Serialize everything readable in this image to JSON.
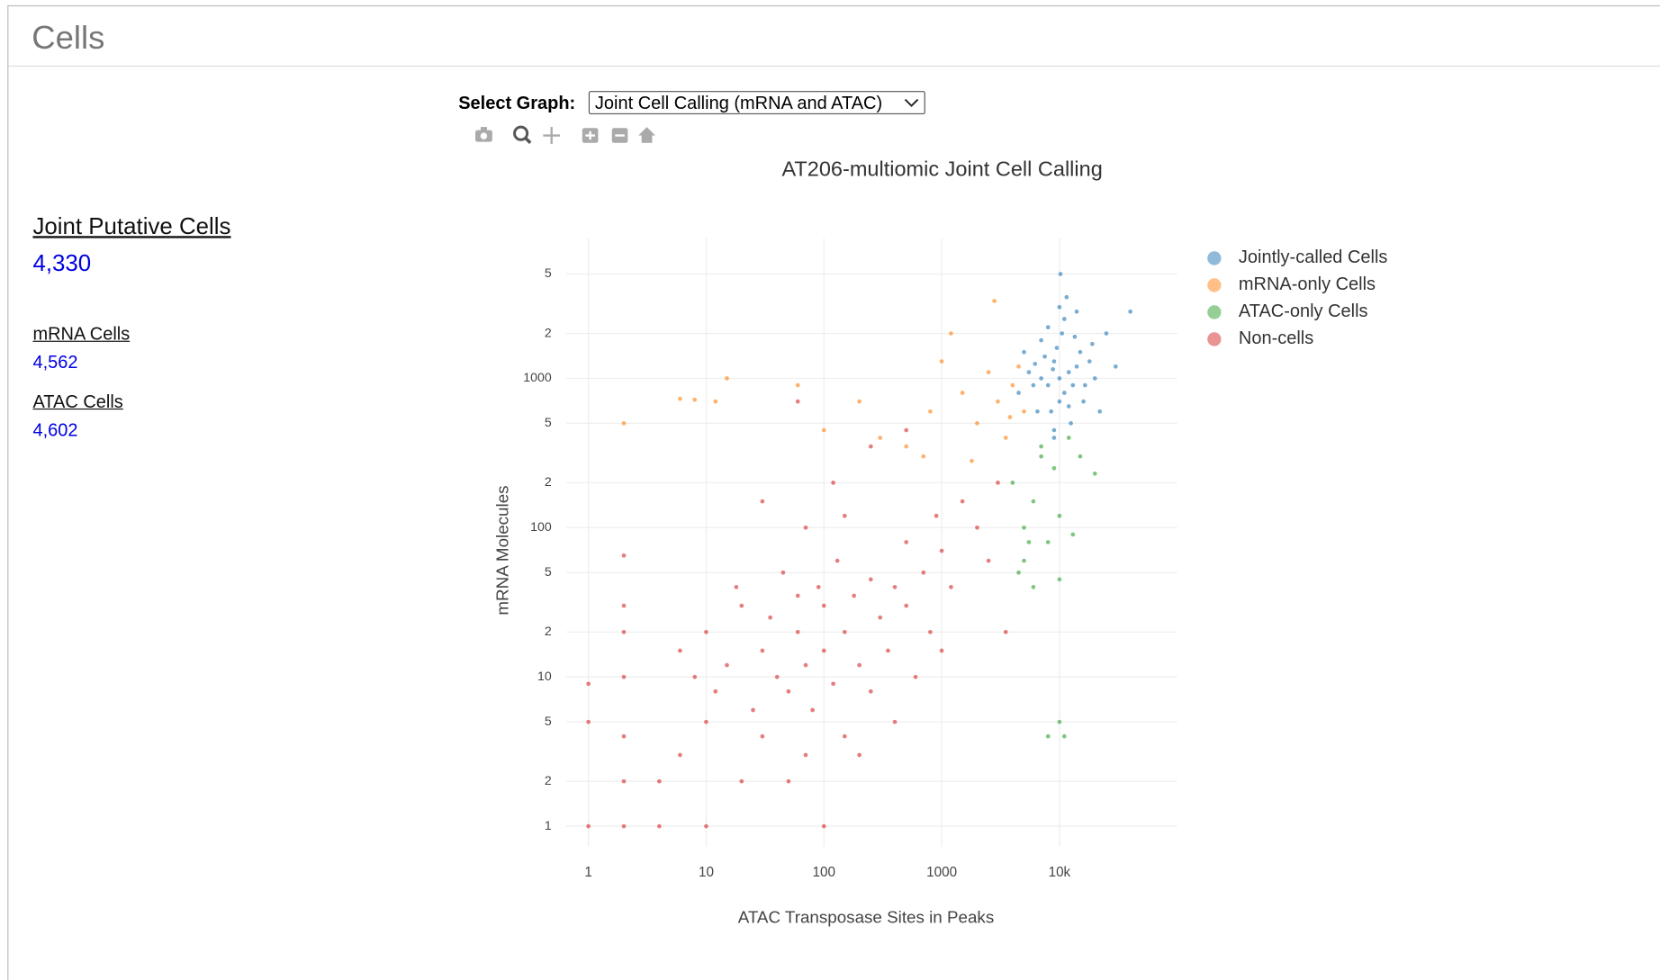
{
  "header": {
    "title": "Cells"
  },
  "sidebar": {
    "metrics": [
      {
        "label": "Joint Putative Cells",
        "value": "4,330"
      },
      {
        "label": "mRNA Cells",
        "value": "4,562"
      },
      {
        "label": "ATAC Cells",
        "value": "4,602"
      }
    ]
  },
  "controls": {
    "select_label": "Select Graph:",
    "select_value": "Joint Cell Calling (mRNA and ATAC)"
  },
  "chart_data": {
    "type": "scatter",
    "title": "AT206-multiomic Joint Cell Calling",
    "x_label": "ATAC Transposase Sites in Peaks",
    "y_label": "mRNA Molecules",
    "xscale": "log",
    "yscale": "log",
    "grid": true,
    "legend": "right",
    "xlim": [
      0.65,
      100000
    ],
    "ylim": [
      0.73,
      8700
    ],
    "xticks": [
      1,
      10,
      100,
      1000,
      {
        "value": 10000,
        "label": "10k"
      }
    ],
    "yticks": [
      1,
      2,
      5,
      10,
      {
        "value": 20,
        "label": "2"
      },
      {
        "value": 50,
        "label": "5"
      },
      100,
      {
        "value": 200,
        "label": "2"
      },
      {
        "value": 500,
        "label": "5"
      },
      1000,
      {
        "value": 2000,
        "label": "2"
      },
      {
        "value": 5000,
        "label": "5"
      }
    ],
    "series": [
      {
        "name": "Jointly-called Cells",
        "color": "#1f77b4",
        "x": [
          10000,
          8000,
          12000,
          9000,
          11000,
          7000,
          14000,
          6000,
          15000,
          10000,
          9500,
          8500,
          13000,
          5500,
          18000,
          10500,
          7500,
          12500,
          9000,
          16000,
          11000,
          8000,
          6500,
          20000,
          5000,
          25000,
          10000,
          9000,
          12000,
          7000,
          14000,
          30000,
          4500,
          22000,
          11500,
          8800,
          19000,
          6200,
          16500,
          40000,
          10200,
          13500
        ],
        "values": [
          1000,
          900,
          1100,
          1300,
          800,
          1000,
          1200,
          900,
          1500,
          700,
          1600,
          600,
          900,
          1100,
          1300,
          2000,
          1400,
          500,
          450,
          700,
          2500,
          2200,
          600,
          1000,
          1500,
          2000,
          3000,
          400,
          650,
          1800,
          2800,
          1200,
          800,
          600,
          3500,
          1150,
          1700,
          1250,
          900,
          2800,
          5000,
          1900
        ]
      },
      {
        "name": "mRNA-only Cells",
        "color": "#ff7f0e",
        "x": [
          2,
          6,
          8,
          12,
          15,
          60,
          100,
          200,
          300,
          500,
          800,
          1000,
          1500,
          2000,
          2500,
          3000,
          3500,
          4000,
          4500,
          2800,
          1200,
          5000,
          700,
          1800,
          3800
        ],
        "values": [
          500,
          730,
          720,
          700,
          1000,
          900,
          450,
          700,
          400,
          350,
          600,
          1300,
          800,
          500,
          1100,
          700,
          400,
          900,
          1200,
          3300,
          2000,
          600,
          300,
          280,
          550
        ]
      },
      {
        "name": "ATAC-only Cells",
        "color": "#2ca02c",
        "x": [
          4000,
          5000,
          5000,
          6000,
          7000,
          8000,
          9000,
          10000,
          10000,
          8000,
          11000,
          12000,
          15000,
          20000,
          4500,
          6000,
          10000,
          7000,
          13000,
          5500
        ],
        "values": [
          200,
          100,
          60,
          150,
          300,
          80,
          250,
          120,
          5,
          4,
          4,
          400,
          300,
          230,
          50,
          40,
          45,
          350,
          90,
          80
        ]
      },
      {
        "name": "Non-cells",
        "color": "#d62728",
        "x": [
          1,
          1,
          1,
          2,
          2,
          2,
          2,
          2,
          2,
          2,
          4,
          4,
          6,
          6,
          8,
          10,
          10,
          10,
          12,
          15,
          18,
          20,
          20,
          25,
          30,
          30,
          35,
          40,
          45,
          50,
          50,
          60,
          60,
          70,
          70,
          80,
          90,
          100,
          100,
          100,
          120,
          130,
          150,
          150,
          180,
          200,
          200,
          250,
          250,
          300,
          350,
          400,
          400,
          500,
          500,
          600,
          700,
          800,
          900,
          1000,
          1200,
          1500,
          2000,
          2500,
          3000,
          60,
          120,
          250,
          500,
          30,
          70,
          150,
          1000,
          3500
        ],
        "values": [
          1,
          5,
          9,
          1,
          2,
          4,
          10,
          20,
          30,
          65,
          1,
          2,
          3,
          15,
          10,
          1,
          5,
          20,
          8,
          12,
          40,
          2,
          30,
          6,
          15,
          4,
          25,
          10,
          50,
          2,
          8,
          20,
          35,
          3,
          12,
          6,
          40,
          1,
          15,
          30,
          9,
          60,
          4,
          20,
          35,
          3,
          12,
          8,
          45,
          25,
          15,
          5,
          40,
          30,
          80,
          10,
          50,
          20,
          120,
          70,
          40,
          150,
          100,
          60,
          200,
          700,
          200,
          350,
          450,
          150,
          100,
          120,
          15,
          20
        ]
      }
    ]
  }
}
